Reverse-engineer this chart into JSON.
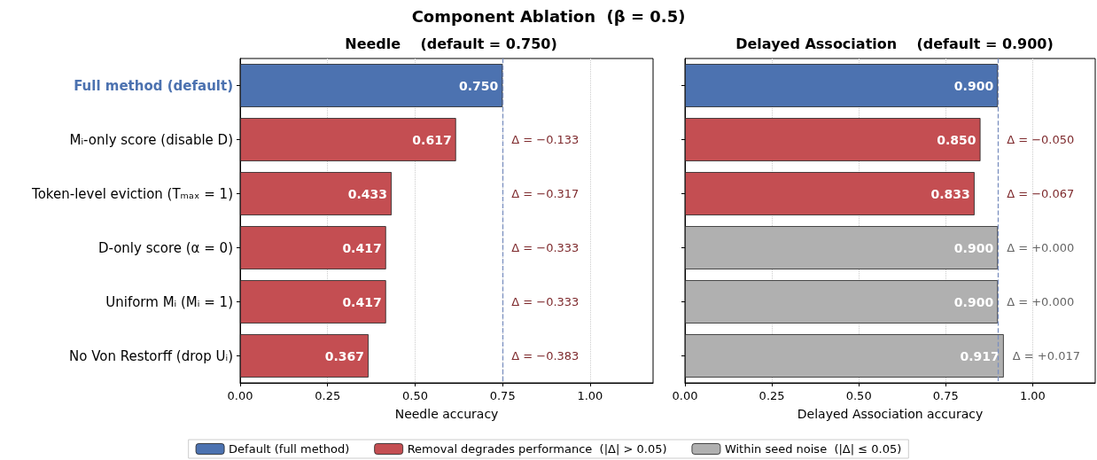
{
  "chart_data": [
    {
      "type": "bar",
      "orientation": "horizontal",
      "stacked": true,
      "title": "Component Ablation  (β = 0.5)",
      "subtitle": "Needle    (default = 0.750)",
      "xlabel": "Needle accuracy",
      "categories": [
        "Full method (default)",
        "Mᵢ-only score (disable D)",
        "Token-level eviction (Tₘₐₓ = 1)",
        "D-only score (α = 0)",
        "Uniform Mᵢ (Mᵢ = 1)",
        "No Von Restorff (drop Uᵢ)"
      ],
      "series": [
        {
          "name": "Default (full method)",
          "color": "#4c72b0",
          "values": [
            0.75,
            null,
            null,
            null,
            null,
            null
          ],
          "value_labels": [
            "0.750",
            null,
            null,
            null,
            null,
            null
          ]
        },
        {
          "name": "Removal degrades performance  (|Δ| > 0.05)",
          "color": "#c44e52",
          "values": [
            null,
            0.617,
            0.433,
            0.417,
            0.417,
            0.367
          ],
          "value_labels": [
            null,
            "0.617",
            "0.433",
            "0.417",
            "0.417",
            "0.367"
          ]
        },
        {
          "name": "Within seed noise  (|Δ| ≤ 0.05)",
          "color": "#b0b0b0",
          "values": [
            null,
            null,
            null,
            null,
            null,
            null
          ]
        }
      ],
      "xlim": [
        0,
        1.18
      ],
      "xticks": [
        {
          "value": 0,
          "label": "0.00"
        },
        {
          "value": 0.25,
          "label": "0.25"
        },
        {
          "value": 0.5,
          "label": "0.50"
        },
        {
          "value": 0.75,
          "label": "0.75"
        },
        {
          "value": 1,
          "label": "1.00"
        }
      ],
      "ref_lines": [
        {
          "axis": "x",
          "value": 0.75,
          "color": "#7a8fbf",
          "line_style": "dashed"
        }
      ],
      "annotations": [
        "Δ = −0.133",
        "Δ = −0.317",
        "Δ = −0.333",
        "Δ = −0.333",
        "Δ = −0.383"
      ],
      "grid": "x",
      "legend": "bottom"
    },
    {
      "type": "bar",
      "orientation": "horizontal",
      "stacked": true,
      "subtitle": "Delayed Association    (default = 0.900)",
      "xlabel": "Delayed Association accuracy",
      "categories": [
        null,
        null,
        null,
        null,
        null,
        null
      ],
      "series": [
        {
          "color": "#4c72b0",
          "values": [
            0.9,
            null,
            null,
            null,
            null,
            null
          ],
          "value_labels": [
            "0.900",
            null,
            null,
            null,
            null,
            null
          ]
        },
        {
          "color": "#c44e52",
          "values": [
            null,
            0.85,
            0.833,
            null,
            null,
            null
          ],
          "value_labels": [
            null,
            "0.850",
            "0.833",
            null,
            null,
            null
          ]
        },
        {
          "color": "#b0b0b0",
          "values": [
            null,
            null,
            null,
            0.9,
            0.9,
            0.917
          ],
          "value_labels": [
            null,
            null,
            null,
            "0.900",
            "0.900",
            "0.917"
          ]
        }
      ],
      "xlim": [
        0,
        1.18
      ],
      "xticks": [
        {
          "value": 0,
          "label": "0.00"
        },
        {
          "value": 0.25,
          "label": "0.25"
        },
        {
          "value": 0.5,
          "label": "0.50"
        },
        {
          "value": 0.75,
          "label": "0.75"
        },
        {
          "value": 1,
          "label": "1.00"
        }
      ],
      "ref_lines": [
        {
          "axis": "x",
          "value": 0.9,
          "color": "#7a8fbf",
          "line_style": "dashed"
        }
      ],
      "annotations": [
        "Δ = −0.050",
        "Δ = −0.067",
        "Δ = +0.000",
        "Δ = +0.000",
        "Δ = +0.017"
      ],
      "grid": "x",
      "tick_labels": "x",
      "legend": false
    }
  ]
}
